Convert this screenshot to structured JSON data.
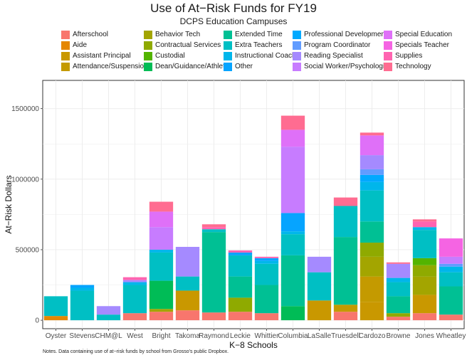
{
  "chart_data": {
    "type": "bar",
    "stacked": true,
    "title": "Use of At−Risk Funds for FY19",
    "subtitle": "DCPS Education Campuses",
    "xlabel": "K−8 Schools",
    "ylabel": "At−Risk Dollars",
    "note": "Notes. Data containing use of at−risk funds by school from Grosso's public Dropbox.",
    "ylim": [
      -60000,
      1700000
    ],
    "yticks": [
      0,
      500000,
      1000000,
      1500000
    ],
    "ytick_labels": [
      "0",
      "500000",
      "1000000",
      "1500000"
    ],
    "grid": true,
    "legend_position": "top",
    "categories": [
      "Oyster",
      "Stevens",
      "CHM@L",
      "West",
      "Bright",
      "Takoma",
      "Raymond",
      "Leckie",
      "Whittier",
      "Columbia",
      "LaSalle",
      "Truesdell",
      "Cardozo",
      "Browne",
      "Jones",
      "Wheatley"
    ],
    "series": [
      {
        "name": "Afterschool",
        "color": "#F8766D",
        "values": [
          0,
          0,
          0,
          50000,
          60000,
          70000,
          55000,
          60000,
          50000,
          0,
          0,
          60000,
          0,
          25000,
          50000,
          40000
        ]
      },
      {
        "name": "Aide",
        "color": "#E58700",
        "values": [
          30000,
          0,
          0,
          0,
          0,
          0,
          0,
          0,
          0,
          0,
          0,
          0,
          0,
          0,
          0,
          0
        ]
      },
      {
        "name": "Assistant Principal",
        "color": "#C99800",
        "values": [
          0,
          0,
          0,
          0,
          0,
          140000,
          0,
          0,
          0,
          0,
          140000,
          0,
          130000,
          0,
          130000,
          0
        ]
      },
      {
        "name": "Attendance/Suspension",
        "color": "#C49A00",
        "values": [
          0,
          0,
          0,
          0,
          0,
          0,
          0,
          0,
          0,
          0,
          0,
          50000,
          180000,
          0,
          0,
          0
        ]
      },
      {
        "name": "Behavior Tech",
        "color": "#A3A500",
        "values": [
          0,
          0,
          0,
          0,
          20000,
          0,
          0,
          0,
          0,
          0,
          0,
          0,
          140000,
          0,
          130000,
          0
        ]
      },
      {
        "name": "Contractual Services",
        "color": "#8FAA00",
        "values": [
          0,
          0,
          0,
          0,
          0,
          0,
          0,
          100000,
          0,
          0,
          0,
          0,
          100000,
          25000,
          80000,
          0
        ]
      },
      {
        "name": "Custodial",
        "color": "#53B400",
        "values": [
          0,
          0,
          0,
          0,
          0,
          0,
          0,
          0,
          0,
          0,
          0,
          0,
          0,
          0,
          50000,
          0
        ]
      },
      {
        "name": "Dean/Guidance/Athletic",
        "color": "#00BC56",
        "values": [
          0,
          0,
          0,
          0,
          200000,
          0,
          0,
          0,
          0,
          100000,
          0,
          0,
          0,
          0,
          0,
          0
        ]
      },
      {
        "name": "Extended Time",
        "color": "#00C094",
        "values": [
          0,
          0,
          0,
          0,
          0,
          0,
          570000,
          150000,
          200000,
          360000,
          0,
          480000,
          150000,
          120000,
          0,
          200000
        ]
      },
      {
        "name": "Extra Teachers",
        "color": "#00BFC4",
        "values": [
          140000,
          210000,
          40000,
          200000,
          200000,
          100000,
          20000,
          150000,
          150000,
          150000,
          200000,
          220000,
          220000,
          100000,
          200000,
          100000
        ]
      },
      {
        "name": "Instructional Coach",
        "color": "#00B6EB",
        "values": [
          0,
          20000,
          0,
          20000,
          20000,
          0,
          0,
          0,
          20000,
          20000,
          0,
          0,
          60000,
          30000,
          20000,
          40000
        ]
      },
      {
        "name": "Other",
        "color": "#06A4FF",
        "values": [
          0,
          20000,
          0,
          0,
          0,
          0,
          0,
          20000,
          20000,
          130000,
          0,
          0,
          0,
          0,
          0,
          0
        ]
      },
      {
        "name": "Professional Development",
        "color": "#00A9FF",
        "values": [
          0,
          0,
          0,
          0,
          0,
          0,
          0,
          0,
          0,
          0,
          0,
          0,
          50000,
          0,
          0,
          0
        ]
      },
      {
        "name": "Program Coordinator",
        "color": "#619CFF",
        "values": [
          0,
          0,
          0,
          0,
          0,
          0,
          0,
          0,
          0,
          0,
          0,
          0,
          40000,
          0,
          0,
          20000
        ]
      },
      {
        "name": "Reading Specialist",
        "color": "#A58AFF",
        "values": [
          0,
          0,
          60000,
          15000,
          0,
          210000,
          0,
          0,
          0,
          0,
          110000,
          0,
          100000,
          100000,
          0,
          0
        ]
      },
      {
        "name": "Social Worker/Psychologist",
        "color": "#C77CFF",
        "values": [
          0,
          0,
          0,
          0,
          160000,
          0,
          0,
          0,
          0,
          470000,
          0,
          0,
          0,
          0,
          0,
          50000
        ]
      },
      {
        "name": "Special Education",
        "color": "#DF70F8",
        "values": [
          0,
          0,
          0,
          0,
          110000,
          0,
          0,
          0,
          0,
          120000,
          0,
          0,
          140000,
          0,
          0,
          0
        ]
      },
      {
        "name": "Specials Teacher",
        "color": "#F564E3",
        "values": [
          0,
          0,
          0,
          0,
          0,
          0,
          0,
          0,
          0,
          0,
          0,
          0,
          0,
          0,
          0,
          130000
        ]
      },
      {
        "name": "Supplies",
        "color": "#FF64B0",
        "values": [
          0,
          0,
          0,
          20000,
          0,
          0,
          15000,
          15000,
          10000,
          0,
          0,
          0,
          0,
          0,
          40000,
          0
        ]
      },
      {
        "name": "Technology",
        "color": "#FF6C91",
        "values": [
          0,
          0,
          0,
          0,
          70000,
          0,
          20000,
          0,
          0,
          100000,
          0,
          60000,
          20000,
          10000,
          15000,
          0
        ]
      }
    ]
  }
}
